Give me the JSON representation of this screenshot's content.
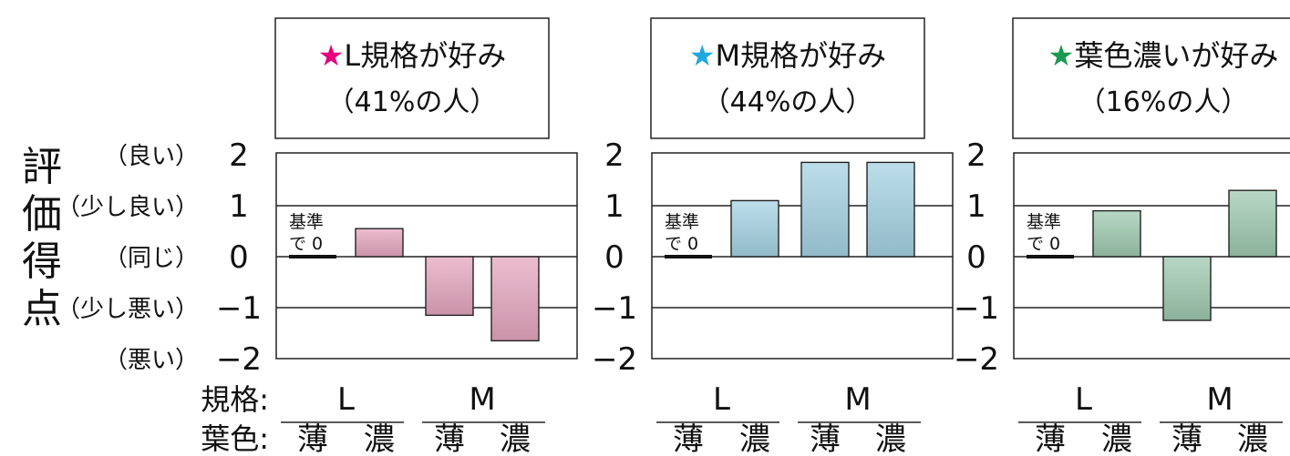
{
  "ylabel": "評価得点",
  "rating_labels": [
    "（良い）",
    "（少し良い）",
    "（同じ）",
    "（少し悪い）",
    "（悪い）"
  ],
  "y_tick_labels": [
    "2",
    "1",
    "0",
    "−1",
    "−2"
  ],
  "x_axis_names": {
    "size": "規格:",
    "leaf_color": "葉色:"
  },
  "reference_note": {
    "line1": "基準",
    "line2": "で 0"
  },
  "colors": {
    "star_pink": "#e6007e",
    "star_blue": "#1fa8e0",
    "star_green": "#1a9a50",
    "bar_pink": "#e6a7bf",
    "bar_blue": "#a6d3e3",
    "bar_green": "#9fcab0"
  },
  "chart_data": [
    {
      "type": "bar",
      "title": "L規格が好み",
      "subtitle": "（41%の人）",
      "star": "★",
      "star_color": "#e6007e",
      "bar_color": "#e6a7bf",
      "groups": [
        "L",
        "M"
      ],
      "categories": [
        "薄",
        "濃",
        "薄",
        "濃"
      ],
      "values": [
        0,
        0.55,
        -1.15,
        -1.65
      ],
      "ylim": [
        -2,
        2
      ],
      "yticks": [
        2,
        1,
        0,
        -1,
        -2
      ],
      "grid": true
    },
    {
      "type": "bar",
      "title": "M規格が好み",
      "subtitle": "（44%の人）",
      "star": "★",
      "star_color": "#1fa8e0",
      "bar_color": "#a6d3e3",
      "groups": [
        "L",
        "M"
      ],
      "categories": [
        "薄",
        "濃",
        "薄",
        "濃"
      ],
      "values": [
        0,
        1.1,
        1.85,
        1.85
      ],
      "ylim": [
        -2,
        2
      ],
      "yticks": [
        2,
        1,
        0,
        -1,
        -2
      ],
      "grid": true
    },
    {
      "type": "bar",
      "title": "葉色濃いが好み",
      "subtitle": "（16%の人）",
      "star": "★",
      "star_color": "#1a9a50",
      "bar_color": "#9fcab0",
      "groups": [
        "L",
        "M"
      ],
      "categories": [
        "薄",
        "濃",
        "薄",
        "濃"
      ],
      "values": [
        0,
        0.9,
        -1.25,
        1.3
      ],
      "ylim": [
        -2,
        2
      ],
      "yticks": [
        2,
        1,
        0,
        -1,
        -2
      ],
      "grid": true
    }
  ]
}
